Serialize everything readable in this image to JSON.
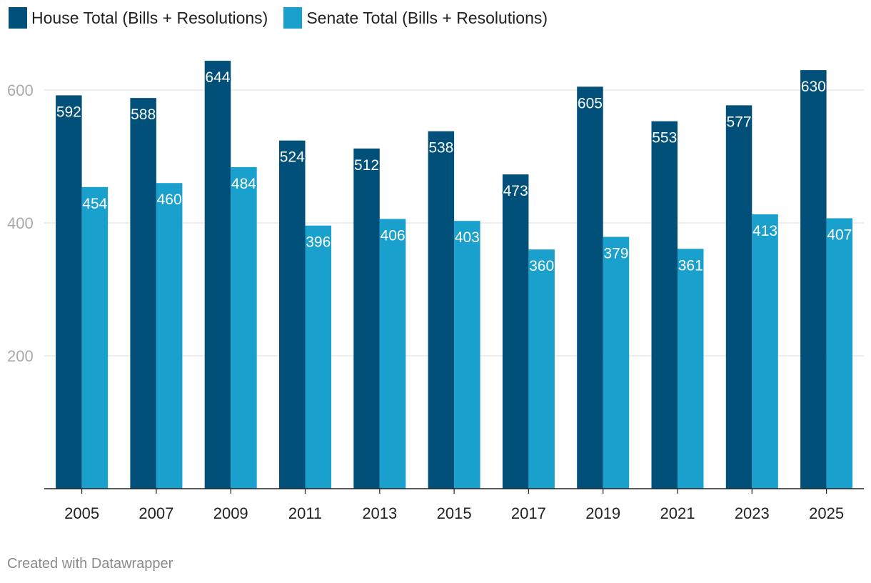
{
  "legend": {
    "house_label": "House Total (Bills + Resolutions)",
    "senate_label": "Senate Total (Bills + Resolutions)"
  },
  "footer": {
    "credit": "Created with Datawrapper"
  },
  "colors": {
    "house": "#00507a",
    "senate": "#1aa0cc",
    "grid": "#dddddd",
    "axis": "#222222"
  },
  "chart_data": {
    "type": "bar",
    "title": "",
    "xlabel": "",
    "ylabel": "",
    "categories": [
      "2005",
      "2007",
      "2009",
      "2011",
      "2013",
      "2015",
      "2017",
      "2019",
      "2021",
      "2023",
      "2025"
    ],
    "series": [
      {
        "name": "House Total (Bills + Resolutions)",
        "values": [
          592,
          588,
          644,
          524,
          512,
          538,
          473,
          605,
          553,
          577,
          630
        ]
      },
      {
        "name": "Senate Total (Bills + Resolutions)",
        "values": [
          454,
          460,
          484,
          396,
          406,
          403,
          360,
          379,
          361,
          413,
          407
        ]
      }
    ],
    "yticks": [
      200,
      400,
      600
    ],
    "ylim": [
      0,
      700
    ],
    "grid": true,
    "legend_position": "top-left"
  }
}
